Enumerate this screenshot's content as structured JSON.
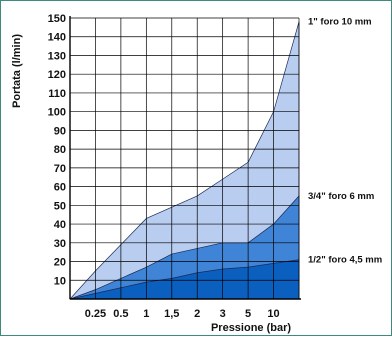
{
  "chart_data": {
    "type": "area",
    "xlabel": "Pressione (bar)",
    "ylabel": "Portata (l/min)",
    "x_ticks": [
      "0.25",
      "0.5",
      "1",
      "1,5",
      "2",
      "3",
      "5",
      "10"
    ],
    "y_ticks": [
      10,
      20,
      30,
      40,
      50,
      60,
      70,
      80,
      90,
      100,
      110,
      120,
      130,
      140,
      150
    ],
    "ylim": [
      0,
      150
    ],
    "grid": true,
    "series": [
      {
        "name": "1\" foro 10 mm",
        "color": "#b9cdf0",
        "values": [
          0,
          15,
          29,
          43,
          49,
          55,
          64,
          73,
          100,
          148
        ]
      },
      {
        "name": "3/4\" foro 6 mm",
        "color": "#3f84d6",
        "values": [
          0,
          5,
          11,
          17,
          24,
          27,
          30,
          30,
          40,
          55
        ]
      },
      {
        "name": "1/2\" foro 4,5 mm",
        "color": "#0b5fbf",
        "values": [
          0,
          3,
          6,
          9,
          11,
          14,
          16,
          17,
          19,
          21
        ]
      }
    ]
  }
}
